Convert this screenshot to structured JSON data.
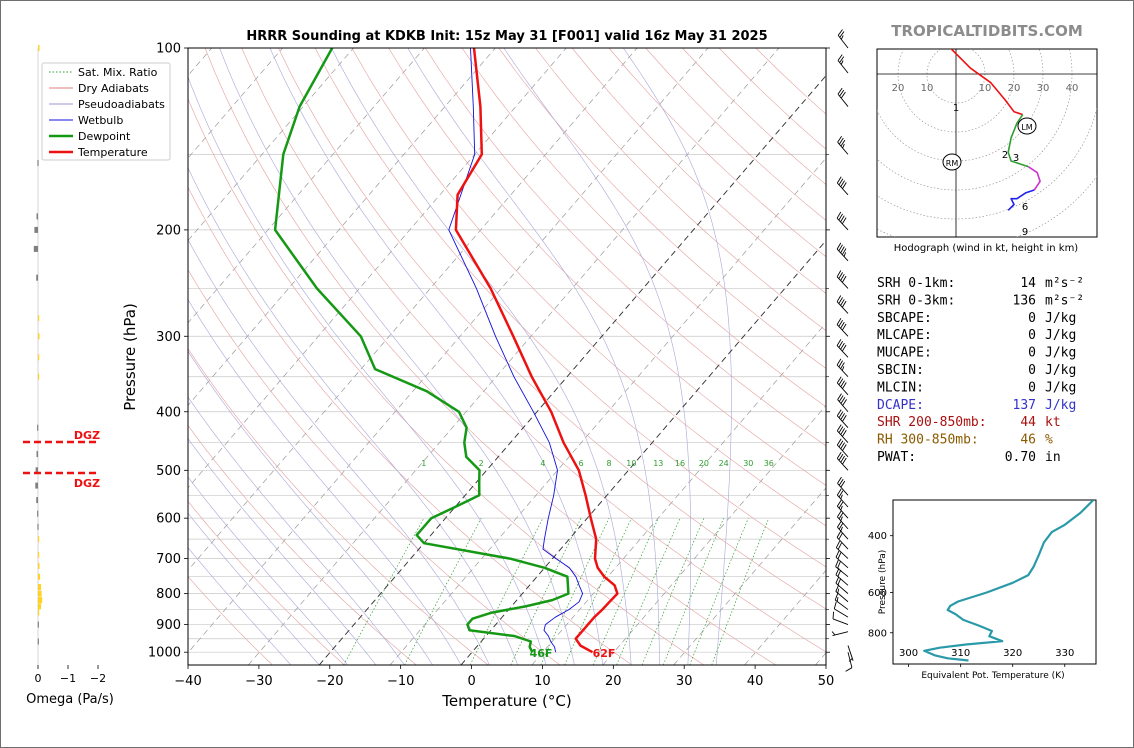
{
  "title": "HRRR Sounding at KDKB Init: 15z May 31 [F001] valid 16z May 31 2025",
  "brand": "TROPICALTIDBITS.COM",
  "omega": {
    "xlabel": "Omega (Pa/s)",
    "ticks": [
      "0",
      "−1",
      "−2"
    ],
    "dgz_label": "DGZ",
    "color_up": "#ffd21f",
    "color_down": "#808080",
    "levels": [
      {
        "p": 100,
        "w": -0.05
      },
      {
        "p": 155,
        "w": 0.02
      },
      {
        "p": 190,
        "w": 0.05
      },
      {
        "p": 200,
        "w": 0.12
      },
      {
        "p": 215,
        "w": 0.14
      },
      {
        "p": 240,
        "w": 0.06
      },
      {
        "p": 280,
        "w": -0.02
      },
      {
        "p": 300,
        "w": -0.05
      },
      {
        "p": 325,
        "w": -0.03
      },
      {
        "p": 350,
        "w": -0.02
      },
      {
        "p": 425,
        "w": 0.03
      },
      {
        "p": 470,
        "w": 0.05
      },
      {
        "p": 500,
        "w": 0.08
      },
      {
        "p": 530,
        "w": 0.09
      },
      {
        "p": 560,
        "w": 0.06
      },
      {
        "p": 590,
        "w": 0.03
      },
      {
        "p": 620,
        "w": 0.02
      },
      {
        "p": 650,
        "w": -0.02
      },
      {
        "p": 690,
        "w": -0.03
      },
      {
        "p": 720,
        "w": -0.05
      },
      {
        "p": 750,
        "w": -0.07
      },
      {
        "p": 780,
        "w": -0.1
      },
      {
        "p": 800,
        "w": -0.12
      },
      {
        "p": 820,
        "w": -0.14
      },
      {
        "p": 840,
        "w": -0.1
      },
      {
        "p": 860,
        "w": -0.03
      },
      {
        "p": 900,
        "w": 0.01
      },
      {
        "p": 960,
        "w": 0.01
      }
    ]
  },
  "legend": {
    "items": [
      {
        "label": "Sat. Mix. Ratio",
        "color": "#2e9e2e",
        "style": "dotted"
      },
      {
        "label": "Dry Adiabats",
        "color": "#e08080",
        "style": "solid"
      },
      {
        "label": "Pseudoadiabats",
        "color": "#9a9ad0",
        "style": "solid"
      },
      {
        "label": "Wetbulb",
        "color": "#1010dd",
        "style": "solid"
      },
      {
        "label": "Dewpoint",
        "color": "#159915",
        "style": "thick"
      },
      {
        "label": "Temperature",
        "color": "#ee1111",
        "style": "thick"
      }
    ]
  },
  "chart_data": {
    "type": "line",
    "title": "HRRR Sounding at KDKB Init: 15z May 31 [F001] valid 16z May 31 2025",
    "xlabel": "Temperature (°C)",
    "ylabel": "Pressure (hPa)",
    "xlim": [
      -40,
      50
    ],
    "ylim": [
      1050,
      100
    ],
    "x_ticks": [
      "−40",
      "−30",
      "−20",
      "−10",
      "0",
      "10",
      "20",
      "30",
      "40",
      "50"
    ],
    "y_ticks": [
      "100",
      "200",
      "300",
      "400",
      "500",
      "600",
      "700",
      "800",
      "900",
      "1000"
    ],
    "y_log": true,
    "skew": true,
    "grid": true,
    "legend_position": "top-left",
    "mixing_ratio_labels": [
      "1",
      "2",
      "4",
      "6",
      "8",
      "10",
      "13",
      "16",
      "20",
      "24",
      "30",
      "36"
    ],
    "surface_labels": {
      "temperature": "62F",
      "dewpoint": "46F"
    },
    "series": [
      {
        "name": "Temperature",
        "color": "#ee1111",
        "points": [
          [
            1000,
            17.0
          ],
          [
            975,
            14.5
          ],
          [
            950,
            13.0
          ],
          [
            925,
            13.0
          ],
          [
            900,
            13.0
          ],
          [
            875,
            13.0
          ],
          [
            850,
            13.2
          ],
          [
            825,
            13.3
          ],
          [
            800,
            13.4
          ],
          [
            775,
            12.0
          ],
          [
            750,
            9.5
          ],
          [
            725,
            7.5
          ],
          [
            700,
            6.0
          ],
          [
            650,
            3.8
          ],
          [
            600,
            0.5
          ],
          [
            550,
            -3.0
          ],
          [
            500,
            -7.0
          ],
          [
            450,
            -12.5
          ],
          [
            400,
            -18.0
          ],
          [
            350,
            -25.0
          ],
          [
            300,
            -32.5
          ],
          [
            250,
            -41.5
          ],
          [
            200,
            -53.5
          ],
          [
            175,
            -57.5
          ],
          [
            150,
            -59.0
          ],
          [
            125,
            -65.0
          ],
          [
            100,
            -73.0
          ]
        ]
      },
      {
        "name": "Dewpoint",
        "color": "#159915",
        "points": [
          [
            1000,
            8.5
          ],
          [
            980,
            7.5
          ],
          [
            960,
            7.0
          ],
          [
            940,
            4.0
          ],
          [
            920,
            -3.0
          ],
          [
            900,
            -4.0
          ],
          [
            880,
            -4.0
          ],
          [
            860,
            -2.0
          ],
          [
            840,
            2.0
          ],
          [
            820,
            5.0
          ],
          [
            800,
            6.5
          ],
          [
            750,
            4.3
          ],
          [
            725,
            0.0
          ],
          [
            700,
            -6.0
          ],
          [
            660,
            -20.0
          ],
          [
            640,
            -22.0
          ],
          [
            600,
            -22.0
          ],
          [
            575,
            -20.0
          ],
          [
            550,
            -18.0
          ],
          [
            525,
            -19.5
          ],
          [
            500,
            -21.0
          ],
          [
            475,
            -24.5
          ],
          [
            450,
            -26.5
          ],
          [
            425,
            -28.0
          ],
          [
            400,
            -31.0
          ],
          [
            370,
            -38.0
          ],
          [
            340,
            -48.0
          ],
          [
            300,
            -54.0
          ],
          [
            250,
            -66.0
          ],
          [
            200,
            -79.0
          ],
          [
            150,
            -87.0
          ],
          [
            125,
            -90.5
          ],
          [
            100,
            -93.0
          ]
        ]
      },
      {
        "name": "Wetbulb",
        "color": "#1010dd",
        "points": [
          [
            1000,
            11.8
          ],
          [
            980,
            11.0
          ],
          [
            960,
            9.8
          ],
          [
            940,
            8.8
          ],
          [
            920,
            7.5
          ],
          [
            900,
            7.0
          ],
          [
            875,
            7.5
          ],
          [
            850,
            8.5
          ],
          [
            825,
            9.0
          ],
          [
            800,
            8.5
          ],
          [
            775,
            7.0
          ],
          [
            750,
            5.5
          ],
          [
            725,
            3.5
          ],
          [
            700,
            0.5
          ],
          [
            675,
            -2.5
          ],
          [
            650,
            -3.5
          ],
          [
            600,
            -5.5
          ],
          [
            550,
            -7.5
          ],
          [
            500,
            -10.0
          ],
          [
            450,
            -14.5
          ],
          [
            400,
            -20.5
          ],
          [
            350,
            -27.5
          ],
          [
            300,
            -35.0
          ],
          [
            250,
            -43.5
          ],
          [
            200,
            -54.5
          ],
          [
            150,
            -60.0
          ],
          [
            125,
            -66.0
          ],
          [
            100,
            -73.5
          ]
        ]
      }
    ]
  },
  "hodograph": {
    "caption": "Hodograph (wind in kt, height in km)",
    "ring_labels": [
      "20",
      "10",
      "10",
      "20",
      "30",
      "40"
    ],
    "markers": [
      "RM",
      "LM"
    ],
    "height_labels": [
      "1",
      "2",
      "3",
      "6",
      "9"
    ],
    "segments": [
      {
        "color": "#ee1111",
        "points": [
          [
            -3,
            11
          ],
          [
            -2,
            9
          ],
          [
            0,
            7
          ],
          [
            5,
            2
          ],
          [
            12,
            -3
          ],
          [
            17,
            -9
          ],
          [
            20,
            -13
          ],
          [
            23,
            -14
          ]
        ]
      },
      {
        "color": "#2e9e2e",
        "points": [
          [
            23,
            -14
          ],
          [
            21,
            -17
          ],
          [
            19,
            -22
          ],
          [
            18,
            -27
          ],
          [
            19,
            -30
          ],
          [
            22,
            -31
          ],
          [
            25,
            -32
          ]
        ]
      },
      {
        "color": "#cc33cc",
        "points": [
          [
            25,
            -32
          ],
          [
            28,
            -34
          ],
          [
            29,
            -37
          ],
          [
            27,
            -40
          ]
        ]
      },
      {
        "color": "#2222ee",
        "points": [
          [
            27,
            -40
          ],
          [
            24,
            -41
          ],
          [
            21,
            -43
          ],
          [
            19,
            -43
          ],
          [
            20,
            -45
          ],
          [
            18,
            -47
          ]
        ]
      }
    ]
  },
  "indices": {
    "rows": [
      {
        "label": "SRH 0-1km:",
        "value": "14",
        "unit": "m²s⁻²",
        "color": "#000000"
      },
      {
        "label": "SRH 0-3km:",
        "value": "136",
        "unit": "m²s⁻²",
        "color": "#000000"
      },
      {
        "label": "SBCAPE:",
        "value": "0",
        "unit": "J/kg",
        "color": "#000000"
      },
      {
        "label": "MLCAPE:",
        "value": "0",
        "unit": "J/kg",
        "color": "#000000"
      },
      {
        "label": "MUCAPE:",
        "value": "0",
        "unit": "J/kg",
        "color": "#000000"
      },
      {
        "label": "SBCIN:",
        "value": "0",
        "unit": "J/kg",
        "color": "#000000"
      },
      {
        "label": "MLCIN:",
        "value": "0",
        "unit": "J/kg",
        "color": "#000000"
      },
      {
        "label": "DCAPE:",
        "value": "137",
        "unit": "J/kg",
        "color": "#3333cc"
      },
      {
        "label": "SHR 200-850mb:",
        "value": "44",
        "unit": "kt",
        "color": "#aa1111"
      },
      {
        "label": "RH 300-850mb:",
        "value": "46",
        "unit": "%",
        "color": "#8a5a00"
      },
      {
        "label": "PWAT:",
        "value": "0.70",
        "unit": "in",
        "color": "#000000"
      }
    ]
  },
  "theta_e": {
    "xlabel": "Equivalent Pot. Temperature (K)",
    "ylabel": "Pressure (hPa)",
    "x_ticks": [
      "300",
      "310",
      "320",
      "330"
    ],
    "y_ticks": [
      "400",
      "600",
      "800"
    ],
    "xlim": [
      297,
      336
    ],
    "ylim": [
      1000,
      310
    ],
    "color": "#2a9aa9",
    "points": [
      [
        975,
        311.5
      ],
      [
        960,
        307.5
      ],
      [
        940,
        305.0
      ],
      [
        910,
        303.0
      ],
      [
        890,
        306.0
      ],
      [
        870,
        311.0
      ],
      [
        850,
        318.0
      ],
      [
        820,
        315.5
      ],
      [
        790,
        316.0
      ],
      [
        760,
        313.5
      ],
      [
        730,
        310.5
      ],
      [
        700,
        309.0
      ],
      [
        680,
        307.5
      ],
      [
        660,
        308.0
      ],
      [
        640,
        309.5
      ],
      [
        600,
        315.0
      ],
      [
        560,
        320.0
      ],
      [
        530,
        323.0
      ],
      [
        500,
        324.0
      ],
      [
        460,
        325.0
      ],
      [
        420,
        326.0
      ],
      [
        390,
        327.5
      ],
      [
        370,
        330.0
      ],
      [
        340,
        333.0
      ],
      [
        310,
        335.5
      ]
    ]
  },
  "winds": [
    {
      "p": 1000,
      "u": -2,
      "v": 8
    },
    {
      "p": 975,
      "u": -2,
      "v": 6
    },
    {
      "p": 925,
      "u": 4,
      "v": 1
    },
    {
      "p": 900,
      "u": 8,
      "v": -3
    },
    {
      "p": 875,
      "u": 10,
      "v": -6
    },
    {
      "p": 850,
      "u": 12,
      "v": -9
    },
    {
      "p": 825,
      "u": 13,
      "v": -11
    },
    {
      "p": 800,
      "u": 14,
      "v": -12
    },
    {
      "p": 775,
      "u": 15,
      "v": -13
    },
    {
      "p": 750,
      "u": 16,
      "v": -13
    },
    {
      "p": 725,
      "u": 16,
      "v": -14
    },
    {
      "p": 700,
      "u": 16,
      "v": -15
    },
    {
      "p": 675,
      "u": 15,
      "v": -16
    },
    {
      "p": 650,
      "u": 15,
      "v": -17
    },
    {
      "p": 625,
      "u": 16,
      "v": -18
    },
    {
      "p": 600,
      "u": 17,
      "v": -19
    },
    {
      "p": 575,
      "u": 18,
      "v": -20
    },
    {
      "p": 550,
      "u": 20,
      "v": -23
    },
    {
      "p": 500,
      "u": 25,
      "v": -28
    },
    {
      "p": 475,
      "u": 27,
      "v": -30
    },
    {
      "p": 450,
      "u": 27,
      "v": -30
    },
    {
      "p": 425,
      "u": 26,
      "v": -29
    },
    {
      "p": 400,
      "u": 25,
      "v": -29
    },
    {
      "p": 375,
      "u": 25,
      "v": -28
    },
    {
      "p": 350,
      "u": 25,
      "v": -27
    },
    {
      "p": 325,
      "u": 26,
      "v": -28
    },
    {
      "p": 300,
      "u": 27,
      "v": -29
    },
    {
      "p": 275,
      "u": 28,
      "v": -30
    },
    {
      "p": 250,
      "u": 29,
      "v": -31
    },
    {
      "p": 225,
      "u": 30,
      "v": -32
    },
    {
      "p": 200,
      "u": 29,
      "v": -31
    },
    {
      "p": 175,
      "u": 27,
      "v": -30
    },
    {
      "p": 150,
      "u": 24,
      "v": -28
    },
    {
      "p": 125,
      "u": 20,
      "v": -25
    },
    {
      "p": 110,
      "u": 16,
      "v": -20
    },
    {
      "p": 100,
      "u": 14,
      "v": -18
    }
  ]
}
